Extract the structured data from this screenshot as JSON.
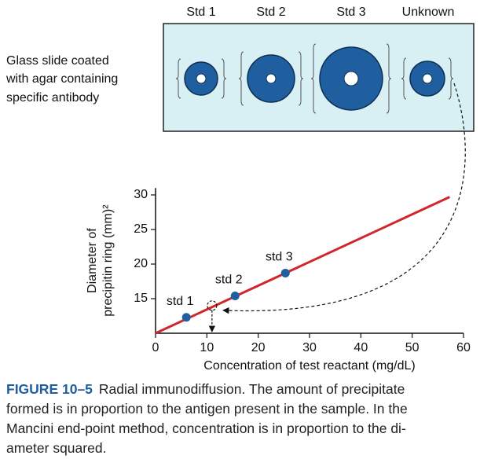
{
  "slide": {
    "labels": [
      "Std 1",
      "Std 2",
      "Std 3",
      "Unknown"
    ],
    "description": [
      "Glass slide coated",
      "with agar containing",
      "specific antibody"
    ]
  },
  "chart_data": {
    "type": "scatter",
    "xlabel": "Concentration of test reactant (mg/dL)",
    "ylabel": [
      "Diameter of",
      "precipitin ring (mm)²"
    ],
    "xlim": [
      0,
      60
    ],
    "ylim": [
      10,
      31
    ],
    "xticks": [
      0,
      10,
      20,
      30,
      40,
      50,
      60
    ],
    "yticks": [
      15,
      20,
      25,
      30
    ],
    "points": {
      "x": [
        6,
        15.5,
        25.3
      ],
      "values": [
        12.3,
        15.4,
        18.7
      ],
      "labels": [
        "std 1",
        "std 2",
        "std 3"
      ],
      "color": "#1f5fa0"
    },
    "line": {
      "x": [
        0,
        57.3
      ],
      "values": [
        10,
        29.7
      ],
      "color": "#d0262c"
    },
    "unknown": {
      "x": 11,
      "values": 14
    }
  },
  "caption": {
    "label": "FIGURE 10–5",
    "lines": [
      "Radial immunodiffusion. The amount of precipitate",
      "formed is in proportion to the antigen present in the sample. In the",
      "Mancini end-point method, concentration is in proportion to the di-",
      "ameter squared."
    ]
  }
}
